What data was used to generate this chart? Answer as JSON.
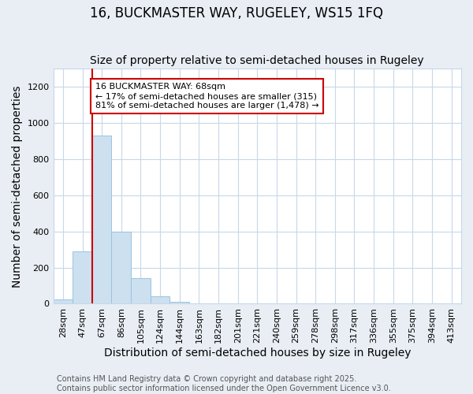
{
  "title": "16, BUCKMASTER WAY, RUGELEY, WS15 1FQ",
  "subtitle": "Size of property relative to semi-detached houses in Rugeley",
  "xlabel": "Distribution of semi-detached houses by size in Rugeley",
  "ylabel": "Number of semi-detached properties",
  "footnote1": "Contains HM Land Registry data © Crown copyright and database right 2025.",
  "footnote2": "Contains public sector information licensed under the Open Government Licence v3.0.",
  "bar_labels": [
    "28sqm",
    "47sqm",
    "67sqm",
    "86sqm",
    "105sqm",
    "124sqm",
    "144sqm",
    "163sqm",
    "182sqm",
    "201sqm",
    "221sqm",
    "240sqm",
    "259sqm",
    "278sqm",
    "298sqm",
    "317sqm",
    "336sqm",
    "355sqm",
    "375sqm",
    "394sqm",
    "413sqm"
  ],
  "bar_values": [
    25,
    290,
    930,
    400,
    140,
    40,
    10,
    0,
    0,
    0,
    0,
    0,
    0,
    0,
    0,
    0,
    0,
    0,
    0,
    0,
    0
  ],
  "bar_color": "#cce0f0",
  "bar_edge_color": "#99c4e0",
  "ylim": [
    0,
    1300
  ],
  "yticks": [
    0,
    200,
    400,
    600,
    800,
    1000,
    1200
  ],
  "annotation_text_line1": "16 BUCKMASTER WAY: 68sqm",
  "annotation_text_line2": "← 17% of semi-detached houses are smaller (315)",
  "annotation_text_line3": "81% of semi-detached houses are larger (1,478) →",
  "figure_bg_color": "#e8eef4",
  "plot_bg_color": "#ffffff",
  "grid_color": "#c8d8e8",
  "redline_color": "#cc0000",
  "redline_bar_index": 2,
  "title_fontsize": 12,
  "subtitle_fontsize": 10,
  "axis_label_fontsize": 10,
  "tick_fontsize": 8,
  "annotation_fontsize": 8,
  "footnote_fontsize": 7
}
